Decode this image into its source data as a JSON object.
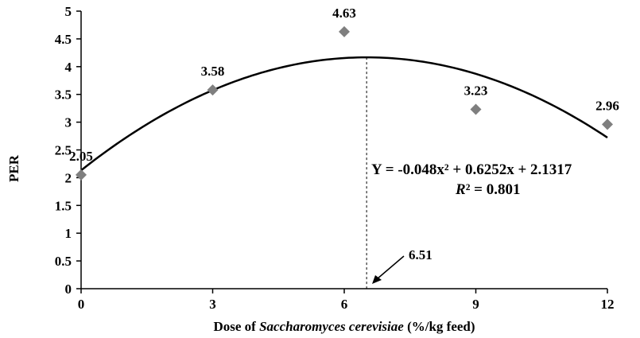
{
  "chart_data": {
    "type": "scatter",
    "x": [
      0,
      3,
      6,
      9,
      12
    ],
    "y": [
      2.05,
      3.58,
      4.63,
      3.23,
      2.96
    ],
    "point_labels": [
      "2.05",
      "3.58",
      "4.63",
      "3.23",
      "2.96"
    ],
    "ylabel": "PER",
    "xlabel_prefix": "Dose of ",
    "xlabel_italic": "Saccharomyces cerevisiae",
    "xlabel_suffix": " (%/kg feed)",
    "xlim": [
      0,
      12
    ],
    "ylim": [
      0,
      5
    ],
    "x_ticks": [
      0,
      3,
      6,
      9,
      12
    ],
    "y_ticks": [
      0,
      0.5,
      1,
      1.5,
      2,
      2.5,
      3,
      3.5,
      4,
      4.5,
      5
    ],
    "x_tick_labels": [
      "0",
      "3",
      "6",
      "9",
      "12"
    ],
    "y_tick_labels": [
      "0",
      "0.5",
      "1",
      "1.5",
      "2",
      "2.5",
      "3",
      "3.5",
      "4",
      "4.5",
      "5"
    ],
    "trendline": {
      "type": "polynomial",
      "coefficients": [
        -0.048,
        0.6252,
        2.1317
      ]
    },
    "equation": "Y = -0.048x² + 0.6252x + 2.1317",
    "r2_symbol": "R",
    "r2_text": "² = 0.801",
    "optimum_x": 6.51,
    "optimum_label": "6.51",
    "grid": false,
    "marker": "diamond",
    "marker_color": "#7f7f7f"
  }
}
